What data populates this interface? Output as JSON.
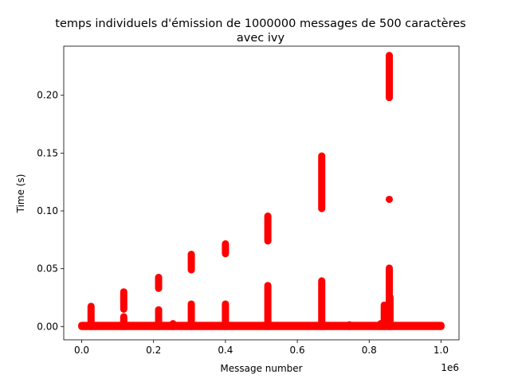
{
  "chart_data": {
    "type": "scatter",
    "title_line1": "temps individuels d'émission de 1000000 messages de 500 caractères",
    "title_line2": "avec ivy",
    "xlabel": "Message number",
    "ylabel": "Time (s)",
    "x_offset_label": "1e6",
    "xlim": [
      -0.05,
      1.05
    ],
    "ylim": [
      -0.0115,
      0.2425
    ],
    "x_ticks": [
      0.0,
      0.2,
      0.4,
      0.6,
      0.8,
      1.0
    ],
    "x_tick_labels": [
      "0.0",
      "0.2",
      "0.4",
      "0.6",
      "0.8",
      "1.0"
    ],
    "y_ticks": [
      0.0,
      0.05,
      0.1,
      0.15,
      0.2
    ],
    "y_tick_labels": [
      "0.00",
      "0.05",
      "0.10",
      "0.15",
      "0.20"
    ],
    "marker_color": "#ff0000",
    "baseline": {
      "x_start": 0.0,
      "x_end": 1.0,
      "y_min": 0.0,
      "y_max": 0.001
    },
    "spike_ranges": [
      {
        "x": 0.026,
        "y_min": 0.0,
        "y_max": 0.0175
      },
      {
        "x": 0.117,
        "y_min": 0.0,
        "y_max": 0.0085
      },
      {
        "x": 0.117,
        "y_min": 0.015,
        "y_max": 0.03
      },
      {
        "x": 0.214,
        "y_min": 0.0,
        "y_max": 0.0145
      },
      {
        "x": 0.214,
        "y_min": 0.033,
        "y_max": 0.0425
      },
      {
        "x": 0.254,
        "y_min": 0.0,
        "y_max": 0.0025
      },
      {
        "x": 0.305,
        "y_min": 0.0,
        "y_max": 0.0195
      },
      {
        "x": 0.305,
        "y_min": 0.049,
        "y_max": 0.0625
      },
      {
        "x": 0.4,
        "y_min": 0.0,
        "y_max": 0.0195
      },
      {
        "x": 0.4,
        "y_min": 0.063,
        "y_max": 0.0715
      },
      {
        "x": 0.518,
        "y_min": 0.0,
        "y_max": 0.0355
      },
      {
        "x": 0.518,
        "y_min": 0.074,
        "y_max": 0.0955
      },
      {
        "x": 0.668,
        "y_min": 0.0,
        "y_max": 0.0395
      },
      {
        "x": 0.668,
        "y_min": 0.102,
        "y_max": 0.1475
      },
      {
        "x": 0.745,
        "y_min": 0.0,
        "y_max": 0.0015
      },
      {
        "x": 0.832,
        "y_min": 0.0,
        "y_max": 0.0025
      },
      {
        "x": 0.842,
        "y_min": 0.0,
        "y_max": 0.0185
      },
      {
        "x": 0.856,
        "y_min": 0.0,
        "y_max": 0.0505
      },
      {
        "x": 0.858,
        "y_min": 0.0,
        "y_max": 0.0255
      },
      {
        "x": 0.856,
        "y_min": 0.198,
        "y_max": 0.2345
      }
    ],
    "single_points": [
      {
        "x": 0.856,
        "y": 0.11
      }
    ]
  }
}
